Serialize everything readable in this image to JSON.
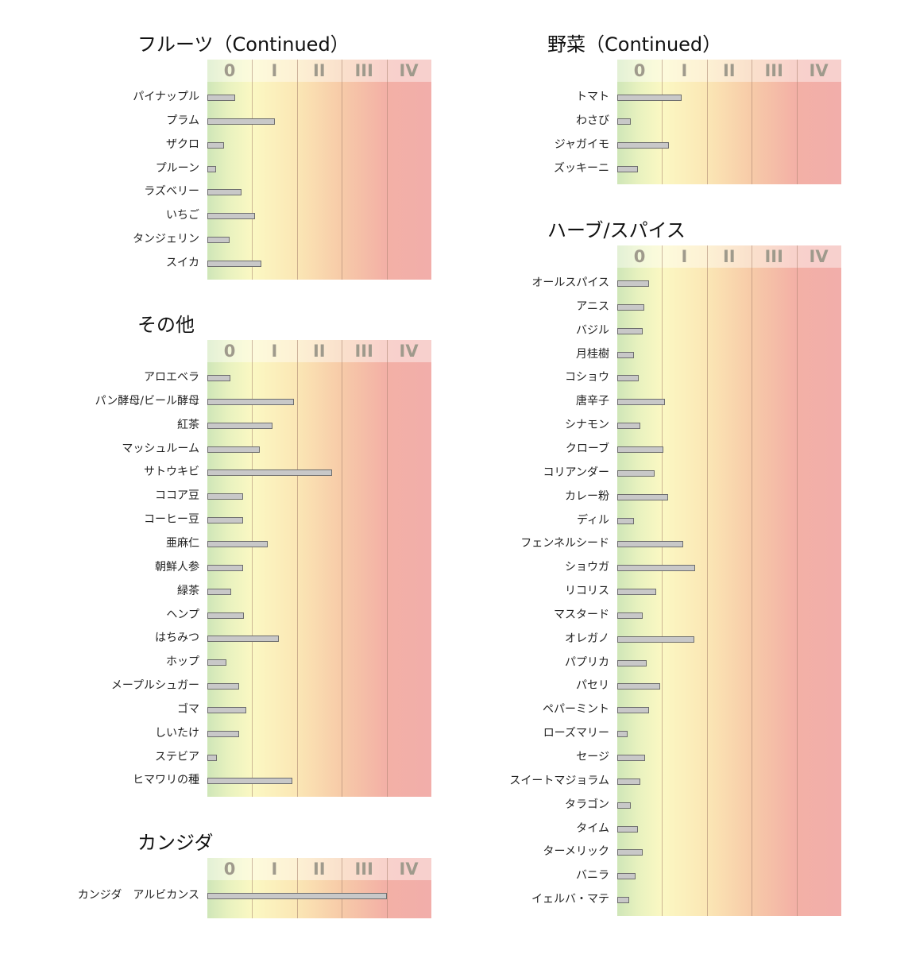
{
  "levels": [
    "0",
    "I",
    "II",
    "III",
    "IV"
  ],
  "colors": {
    "bar_fill": "#c8c8c8",
    "bar_border": "#6e6e6e"
  },
  "chart_data": [
    {
      "type": "bar",
      "title": "フルーツ（Continued）",
      "categories": [
        "パイナップル",
        "プラム",
        "ザクロ",
        "プルーン",
        "ラズベリー",
        "いちご",
        "タンジェリン",
        "スイカ"
      ],
      "values": [
        0.62,
        1.5,
        0.37,
        0.2,
        0.77,
        1.06,
        0.5,
        1.21
      ],
      "xlim": [
        0,
        5
      ],
      "x_tick_labels": [
        "0",
        "I",
        "II",
        "III",
        "IV"
      ]
    },
    {
      "type": "bar",
      "title": "その他",
      "categories": [
        "アロエベラ",
        "パン酵母/ビール酵母",
        "紅茶",
        "マッシュルーム",
        "サトウキビ",
        "ココア豆",
        "コーヒー豆",
        "亜麻仁",
        "朝鮮人参",
        "緑茶",
        "ヘンプ",
        "はちみつ",
        "ホップ",
        "メープルシュガー",
        "ゴマ",
        "しいたけ",
        "ステビア",
        "ヒマワリの種"
      ],
      "values": [
        0.52,
        1.93,
        1.45,
        1.17,
        2.78,
        0.79,
        0.8,
        1.34,
        0.79,
        0.53,
        0.81,
        1.6,
        0.43,
        0.71,
        0.86,
        0.71,
        0.21,
        1.9
      ],
      "xlim": [
        0,
        5
      ],
      "x_tick_labels": [
        "0",
        "I",
        "II",
        "III",
        "IV"
      ]
    },
    {
      "type": "bar",
      "title": "カンジダ",
      "categories": [
        "カンジダ　アルビカンス"
      ],
      "values": [
        4.0
      ],
      "xlim": [
        0,
        5
      ],
      "x_tick_labels": [
        "0",
        "I",
        "II",
        "III",
        "IV"
      ]
    },
    {
      "type": "bar",
      "title": "野菜（Continued）",
      "categories": [
        "トマト",
        "わさび",
        "ジャガイモ",
        "ズッキーニ"
      ],
      "values": [
        1.43,
        0.3,
        1.15,
        0.46
      ],
      "xlim": [
        0,
        5
      ],
      "x_tick_labels": [
        "0",
        "I",
        "II",
        "III",
        "IV"
      ]
    },
    {
      "type": "bar",
      "title": "ハーブ/スパイス",
      "categories": [
        "オールスパイス",
        "アニス",
        "バジル",
        "月桂樹",
        "コショウ",
        "唐辛子",
        "シナモン",
        "クローブ",
        "コリアンダー",
        "カレー粉",
        "ディル",
        "フェンネルシード",
        "ショウガ",
        "リコリス",
        "マスタード",
        "オレガノ",
        "パプリカ",
        "パセリ",
        "ペパーミント",
        "ローズマリー",
        "セージ",
        "スイートマジョラム",
        "タラゴン",
        "タイム",
        "ターメリック",
        "バニラ",
        "イェルバ・マテ"
      ],
      "values": [
        0.71,
        0.6,
        0.57,
        0.37,
        0.48,
        1.06,
        0.51,
        1.02,
        0.84,
        1.14,
        0.37,
        1.48,
        1.73,
        0.86,
        0.57,
        1.72,
        0.65,
        0.96,
        0.71,
        0.23,
        0.62,
        0.51,
        0.3,
        0.46,
        0.57,
        0.4,
        0.26
      ],
      "xlim": [
        0,
        5
      ],
      "x_tick_labels": [
        "0",
        "I",
        "II",
        "III",
        "IV"
      ]
    }
  ]
}
